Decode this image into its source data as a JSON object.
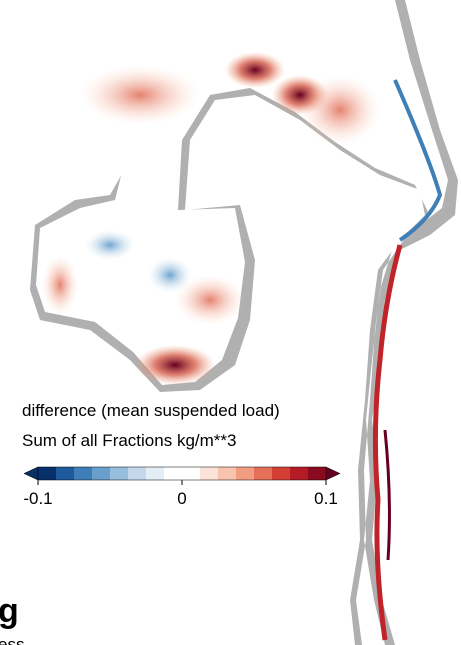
{
  "legend": {
    "title": "difference (mean suspended load)",
    "subtitle": "Sum of all  Fractions   kg/m**3"
  },
  "colorbar": {
    "lim": [
      -0.1,
      0.1
    ],
    "ticks": [
      -0.1,
      0,
      0.1
    ],
    "colors": [
      "#08306b",
      "#1f5a9c",
      "#3f7fb8",
      "#6a9fcc",
      "#98bedd",
      "#c3d8ea",
      "#e3edf5",
      "#ffffff",
      "#ffffff",
      "#fbe3d9",
      "#f8c4af",
      "#f29d82",
      "#e56f58",
      "#d43f35",
      "#b51b27",
      "#8c0a1f"
    ],
    "under_color": "#053061",
    "over_color": "#67001f"
  },
  "footer": {
    "letter": "g",
    "caption": "ess"
  }
}
